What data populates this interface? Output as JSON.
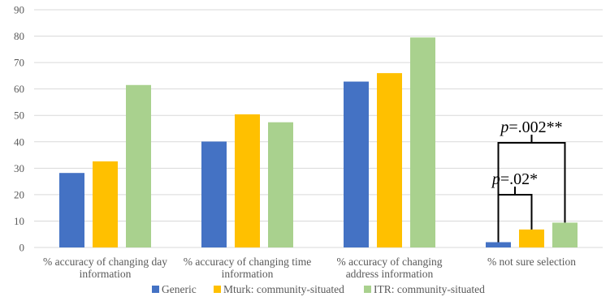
{
  "chart_data": {
    "type": "bar",
    "categories": [
      [
        "% accuracy of changing day",
        "information"
      ],
      [
        "% accuracy of changing time",
        "information"
      ],
      [
        "% accuracy of changing",
        "address information"
      ],
      [
        "% not sure selection"
      ]
    ],
    "series": [
      {
        "name": "Generic",
        "color": "#4472C4",
        "values": [
          28.2,
          40.1,
          62.8,
          2.0
        ]
      },
      {
        "name": "Mturk: community-situated",
        "color": "#FFC000",
        "values": [
          32.6,
          50.4,
          66.0,
          6.8
        ]
      },
      {
        "name": "ITR: community-situated",
        "color": "#A9D18E",
        "values": [
          61.5,
          47.4,
          79.5,
          9.4
        ]
      }
    ],
    "ylim": [
      0,
      90
    ],
    "yticks": [
      0,
      10,
      20,
      30,
      40,
      50,
      60,
      70,
      80,
      90
    ],
    "grid": true,
    "legend_position": "bottom",
    "annotations": [
      {
        "label_italic": "p",
        "label_rest": "=.002**",
        "from_series": 0,
        "to_series": 2,
        "category": 3,
        "level": 0
      },
      {
        "label_italic": "p",
        "label_rest": "=.02*",
        "from_series": 0,
        "to_series": 1,
        "category": 3,
        "level": 1
      }
    ]
  }
}
